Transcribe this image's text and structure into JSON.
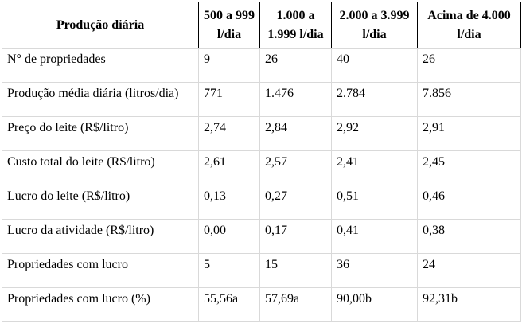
{
  "table": {
    "header": {
      "corner": "Produção diária",
      "columns": [
        "500 a 999 l/dia",
        "1.000 a 1.999 l/dia",
        "2.000 a 3.999 l/dia",
        "Acima de 4.000 l/dia"
      ]
    },
    "rows": [
      {
        "label": "N° de propriedades",
        "values": [
          "9",
          "26",
          "40",
          "26"
        ]
      },
      {
        "label": "Produção média diária (litros/dia)",
        "values": [
          "771",
          "1.476",
          "2.784",
          "7.856"
        ]
      },
      {
        "label": "Preço do leite (R$/litro)",
        "values": [
          "2,74",
          "2,84",
          "2,92",
          "2,91"
        ]
      },
      {
        "label": "Custo total do leite (R$/litro)",
        "values": [
          "2,61",
          "2,57",
          "2,41",
          "2,45"
        ]
      },
      {
        "label": "Lucro do leite (R$/litro)",
        "values": [
          "0,13",
          "0,27",
          "0,51",
          "0,46"
        ]
      },
      {
        "label": "Lucro da atividade (R$/litro)",
        "values": [
          "0,00",
          "0,17",
          "0,41",
          "0,38"
        ]
      },
      {
        "label": "Propriedades com lucro",
        "values": [
          "5",
          "15",
          "36",
          "24"
        ]
      },
      {
        "label": "Propriedades com lucro (%)",
        "values": [
          "55,56a",
          "57,69a",
          "90,00b",
          "92,31b"
        ]
      }
    ],
    "colors": {
      "header_border": "#000000",
      "grid_border": "#d9d9d9",
      "text": "#000000",
      "background": "#ffffff"
    }
  }
}
